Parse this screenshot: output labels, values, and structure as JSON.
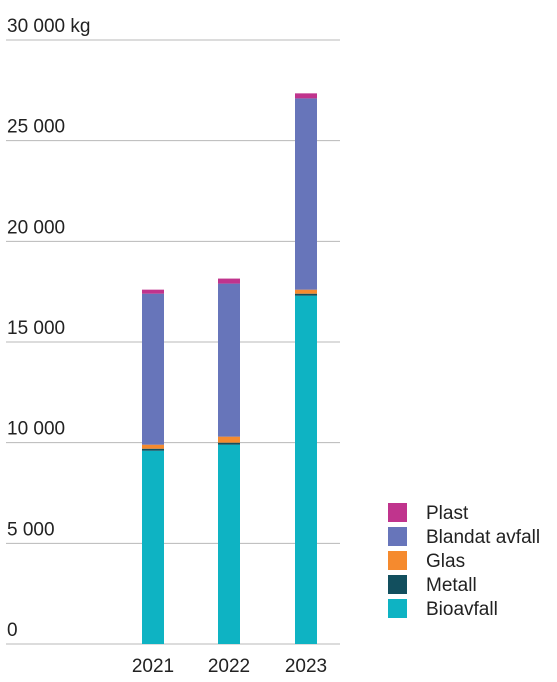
{
  "chart_data": {
    "type": "bar",
    "stacked": true,
    "title": "",
    "xlabel": "",
    "ylabel": "",
    "unit": "kg",
    "ylim": [
      0,
      30000
    ],
    "yticks": [
      0,
      5000,
      10000,
      15000,
      20000,
      25000,
      30000
    ],
    "ytick_labels": [
      "0",
      "5 000",
      "10 000",
      "15 000",
      "20 000",
      "25 000",
      "30 000 kg"
    ],
    "categories": [
      "2021",
      "2022",
      "2023"
    ],
    "grid": true,
    "legend_position": "bottom-right",
    "series": [
      {
        "name": "Bioavfall",
        "color": "#0eb3c3",
        "values": [
          9600,
          9900,
          17300
        ]
      },
      {
        "name": "Metall",
        "color": "#124f5e",
        "values": [
          100,
          100,
          100
        ]
      },
      {
        "name": "Glas",
        "color": "#f58a2e",
        "values": [
          200,
          300,
          200
        ]
      },
      {
        "name": "Blandat avfall",
        "color": "#6775ba",
        "values": [
          7500,
          7600,
          9500
        ]
      },
      {
        "name": "Plast",
        "color": "#c0348d",
        "values": [
          200,
          250,
          250
        ]
      }
    ],
    "legend_order": [
      "Plast",
      "Blandat avfall",
      "Glas",
      "Metall",
      "Bioavfall"
    ]
  }
}
